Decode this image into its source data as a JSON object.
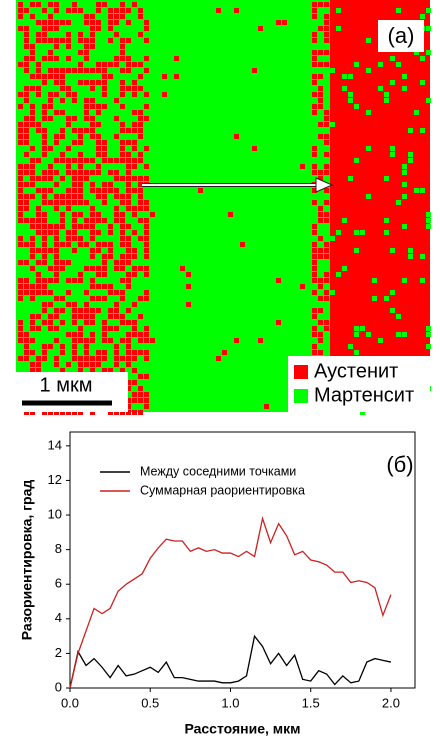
{
  "map": {
    "label": "(a)",
    "scale_bar": "1 мкм",
    "legend": [
      {
        "name": "Аустенит",
        "color": "#ff0000"
      },
      {
        "name": "Мартенсит",
        "color": "#00ff00"
      }
    ]
  },
  "chart_data": {
    "type": "line",
    "label": "(б)",
    "x_label": "Расстояние, мкм",
    "y_label": "Разориентировка, град",
    "x": [
      0,
      0.05,
      0.1,
      0.15,
      0.2,
      0.25,
      0.3,
      0.35,
      0.4,
      0.45,
      0.5,
      0.55,
      0.6,
      0.65,
      0.7,
      0.75,
      0.8,
      0.85,
      0.9,
      0.95,
      1.0,
      1.05,
      1.1,
      1.15,
      1.2,
      1.25,
      1.3,
      1.35,
      1.4,
      1.45,
      1.5,
      1.55,
      1.6,
      1.65,
      1.7,
      1.75,
      1.8,
      1.85,
      1.9,
      1.95,
      2.0
    ],
    "series": [
      {
        "name": "Между соседними точками",
        "color": "#000000",
        "values": [
          0,
          2.1,
          1.3,
          1.7,
          1.2,
          0.6,
          1.3,
          0.7,
          0.8,
          1.0,
          1.2,
          0.9,
          1.5,
          0.6,
          0.6,
          0.5,
          0.4,
          0.4,
          0.4,
          0.3,
          0.3,
          0.4,
          0.7,
          3.0,
          2.4,
          1.4,
          2.0,
          1.3,
          1.9,
          0.5,
          0.4,
          1.0,
          0.8,
          0.2,
          0.7,
          0.3,
          0.4,
          1.5,
          1.7,
          1.6,
          1.5
        ]
      },
      {
        "name": "Суммарная раориентировка",
        "color": "#cc2020",
        "values": [
          0,
          2.0,
          3.3,
          4.6,
          4.3,
          4.6,
          5.6,
          6.0,
          6.3,
          6.6,
          7.5,
          8.1,
          8.6,
          8.5,
          8.5,
          7.9,
          8.1,
          7.9,
          8.0,
          7.8,
          7.8,
          7.6,
          7.9,
          7.6,
          9.8,
          8.4,
          9.5,
          8.8,
          7.7,
          7.9,
          7.4,
          7.3,
          7.1,
          6.7,
          6.7,
          6.1,
          6.2,
          6.1,
          5.8,
          4.2,
          5.4
        ]
      }
    ],
    "xlim": [
      0,
      2.15
    ],
    "ylim": [
      0,
      14.8
    ],
    "xticks": [
      {
        "value": 0,
        "label": "0.0"
      },
      0.5,
      {
        "value": 1,
        "label": "1.0"
      },
      1.5,
      {
        "value": 2,
        "label": "2.0"
      }
    ],
    "yticks": [
      0,
      2,
      4,
      6,
      8,
      10,
      12,
      14
    ]
  }
}
